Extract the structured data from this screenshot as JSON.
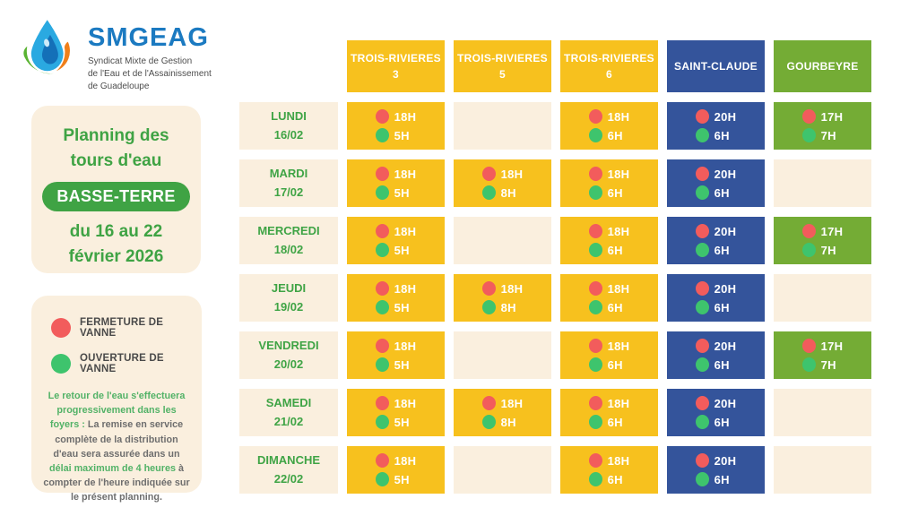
{
  "logo": {
    "name": "SMGEAG",
    "subtitle_lines": [
      "Syndicat Mixte de Gestion",
      "de l'Eau et de l'Assainissement",
      "de Guadeloupe"
    ]
  },
  "title_card": {
    "title_lines": [
      "Planning des",
      "tours d'eau"
    ],
    "badge": "BASSE-TERRE",
    "period_lines": [
      "du 16 au 22",
      "février 2026"
    ]
  },
  "legend_card": {
    "items": [
      {
        "label": "FERMETURE DE VANNE",
        "color": "#F25C5C"
      },
      {
        "label": "OUVERTURE DE VANNE",
        "color": "#3EC46D"
      }
    ],
    "note": [
      {
        "text": "Le retour de l'eau s'effectuera progressivement dans les foyers : ",
        "style": "green"
      },
      {
        "text": "La remise en service complète de la distribution d'eau sera assurée dans un ",
        "style": "gray"
      },
      {
        "text": "délai maximum de 4 heures",
        "style": "green"
      },
      {
        "text": " à compter de l'heure indiquée sur le présent planning.",
        "style": "gray"
      }
    ]
  },
  "schedule": {
    "columns": [
      {
        "label": "TROIS-RIVIERES",
        "sub": "3",
        "color": "#F7C11E"
      },
      {
        "label": "TROIS-RIVIERES",
        "sub": "5",
        "color": "#F7C11E"
      },
      {
        "label": "TROIS-RIVIERES",
        "sub": "6",
        "color": "#F7C11E"
      },
      {
        "label": "SAINT-CLAUDE",
        "sub": "",
        "color": "#34549B"
      },
      {
        "label": "GOURBEYRE",
        "sub": "",
        "color": "#74AC35"
      }
    ],
    "rows": [
      {
        "day": "LUNDI",
        "date": "16/02",
        "cells": [
          {
            "close": "18H",
            "open": "5H"
          },
          null,
          {
            "close": "18H",
            "open": "6H"
          },
          {
            "close": "20H",
            "open": "6H"
          },
          {
            "close": "17H",
            "open": "7H"
          }
        ]
      },
      {
        "day": "MARDI",
        "date": "17/02",
        "cells": [
          {
            "close": "18H",
            "open": "5H"
          },
          {
            "close": "18H",
            "open": "8H"
          },
          {
            "close": "18H",
            "open": "6H"
          },
          {
            "close": "20H",
            "open": "6H"
          },
          null
        ]
      },
      {
        "day": "MERCREDI",
        "date": "18/02",
        "cells": [
          {
            "close": "18H",
            "open": "5H"
          },
          null,
          {
            "close": "18H",
            "open": "6H"
          },
          {
            "close": "20H",
            "open": "6H"
          },
          {
            "close": "17H",
            "open": "7H"
          }
        ]
      },
      {
        "day": "JEUDI",
        "date": "19/02",
        "cells": [
          {
            "close": "18H",
            "open": "5H"
          },
          {
            "close": "18H",
            "open": "8H"
          },
          {
            "close": "18H",
            "open": "6H"
          },
          {
            "close": "20H",
            "open": "6H"
          },
          null
        ]
      },
      {
        "day": "VENDREDI",
        "date": "20/02",
        "cells": [
          {
            "close": "18H",
            "open": "5H"
          },
          null,
          {
            "close": "18H",
            "open": "6H"
          },
          {
            "close": "20H",
            "open": "6H"
          },
          {
            "close": "17H",
            "open": "7H"
          }
        ]
      },
      {
        "day": "SAMEDI",
        "date": "21/02",
        "cells": [
          {
            "close": "18H",
            "open": "5H"
          },
          {
            "close": "18H",
            "open": "8H"
          },
          {
            "close": "18H",
            "open": "6H"
          },
          {
            "close": "20H",
            "open": "6H"
          },
          null
        ]
      },
      {
        "day": "DIMANCHE",
        "date": "22/02",
        "cells": [
          {
            "close": "18H",
            "open": "5H"
          },
          null,
          {
            "close": "18H",
            "open": "6H"
          },
          {
            "close": "20H",
            "open": "6H"
          },
          null
        ]
      }
    ]
  },
  "colors": {
    "yellow": "#F7C11E",
    "blue": "#34549B",
    "green_column": "#74AC35",
    "cream": "#FAEFDE",
    "red_dot": "#F25C5C",
    "green_dot": "#3EC46D",
    "brand_green": "#3FA344",
    "brand_blue": "#1B7AC1",
    "note_green": "#52B267"
  }
}
